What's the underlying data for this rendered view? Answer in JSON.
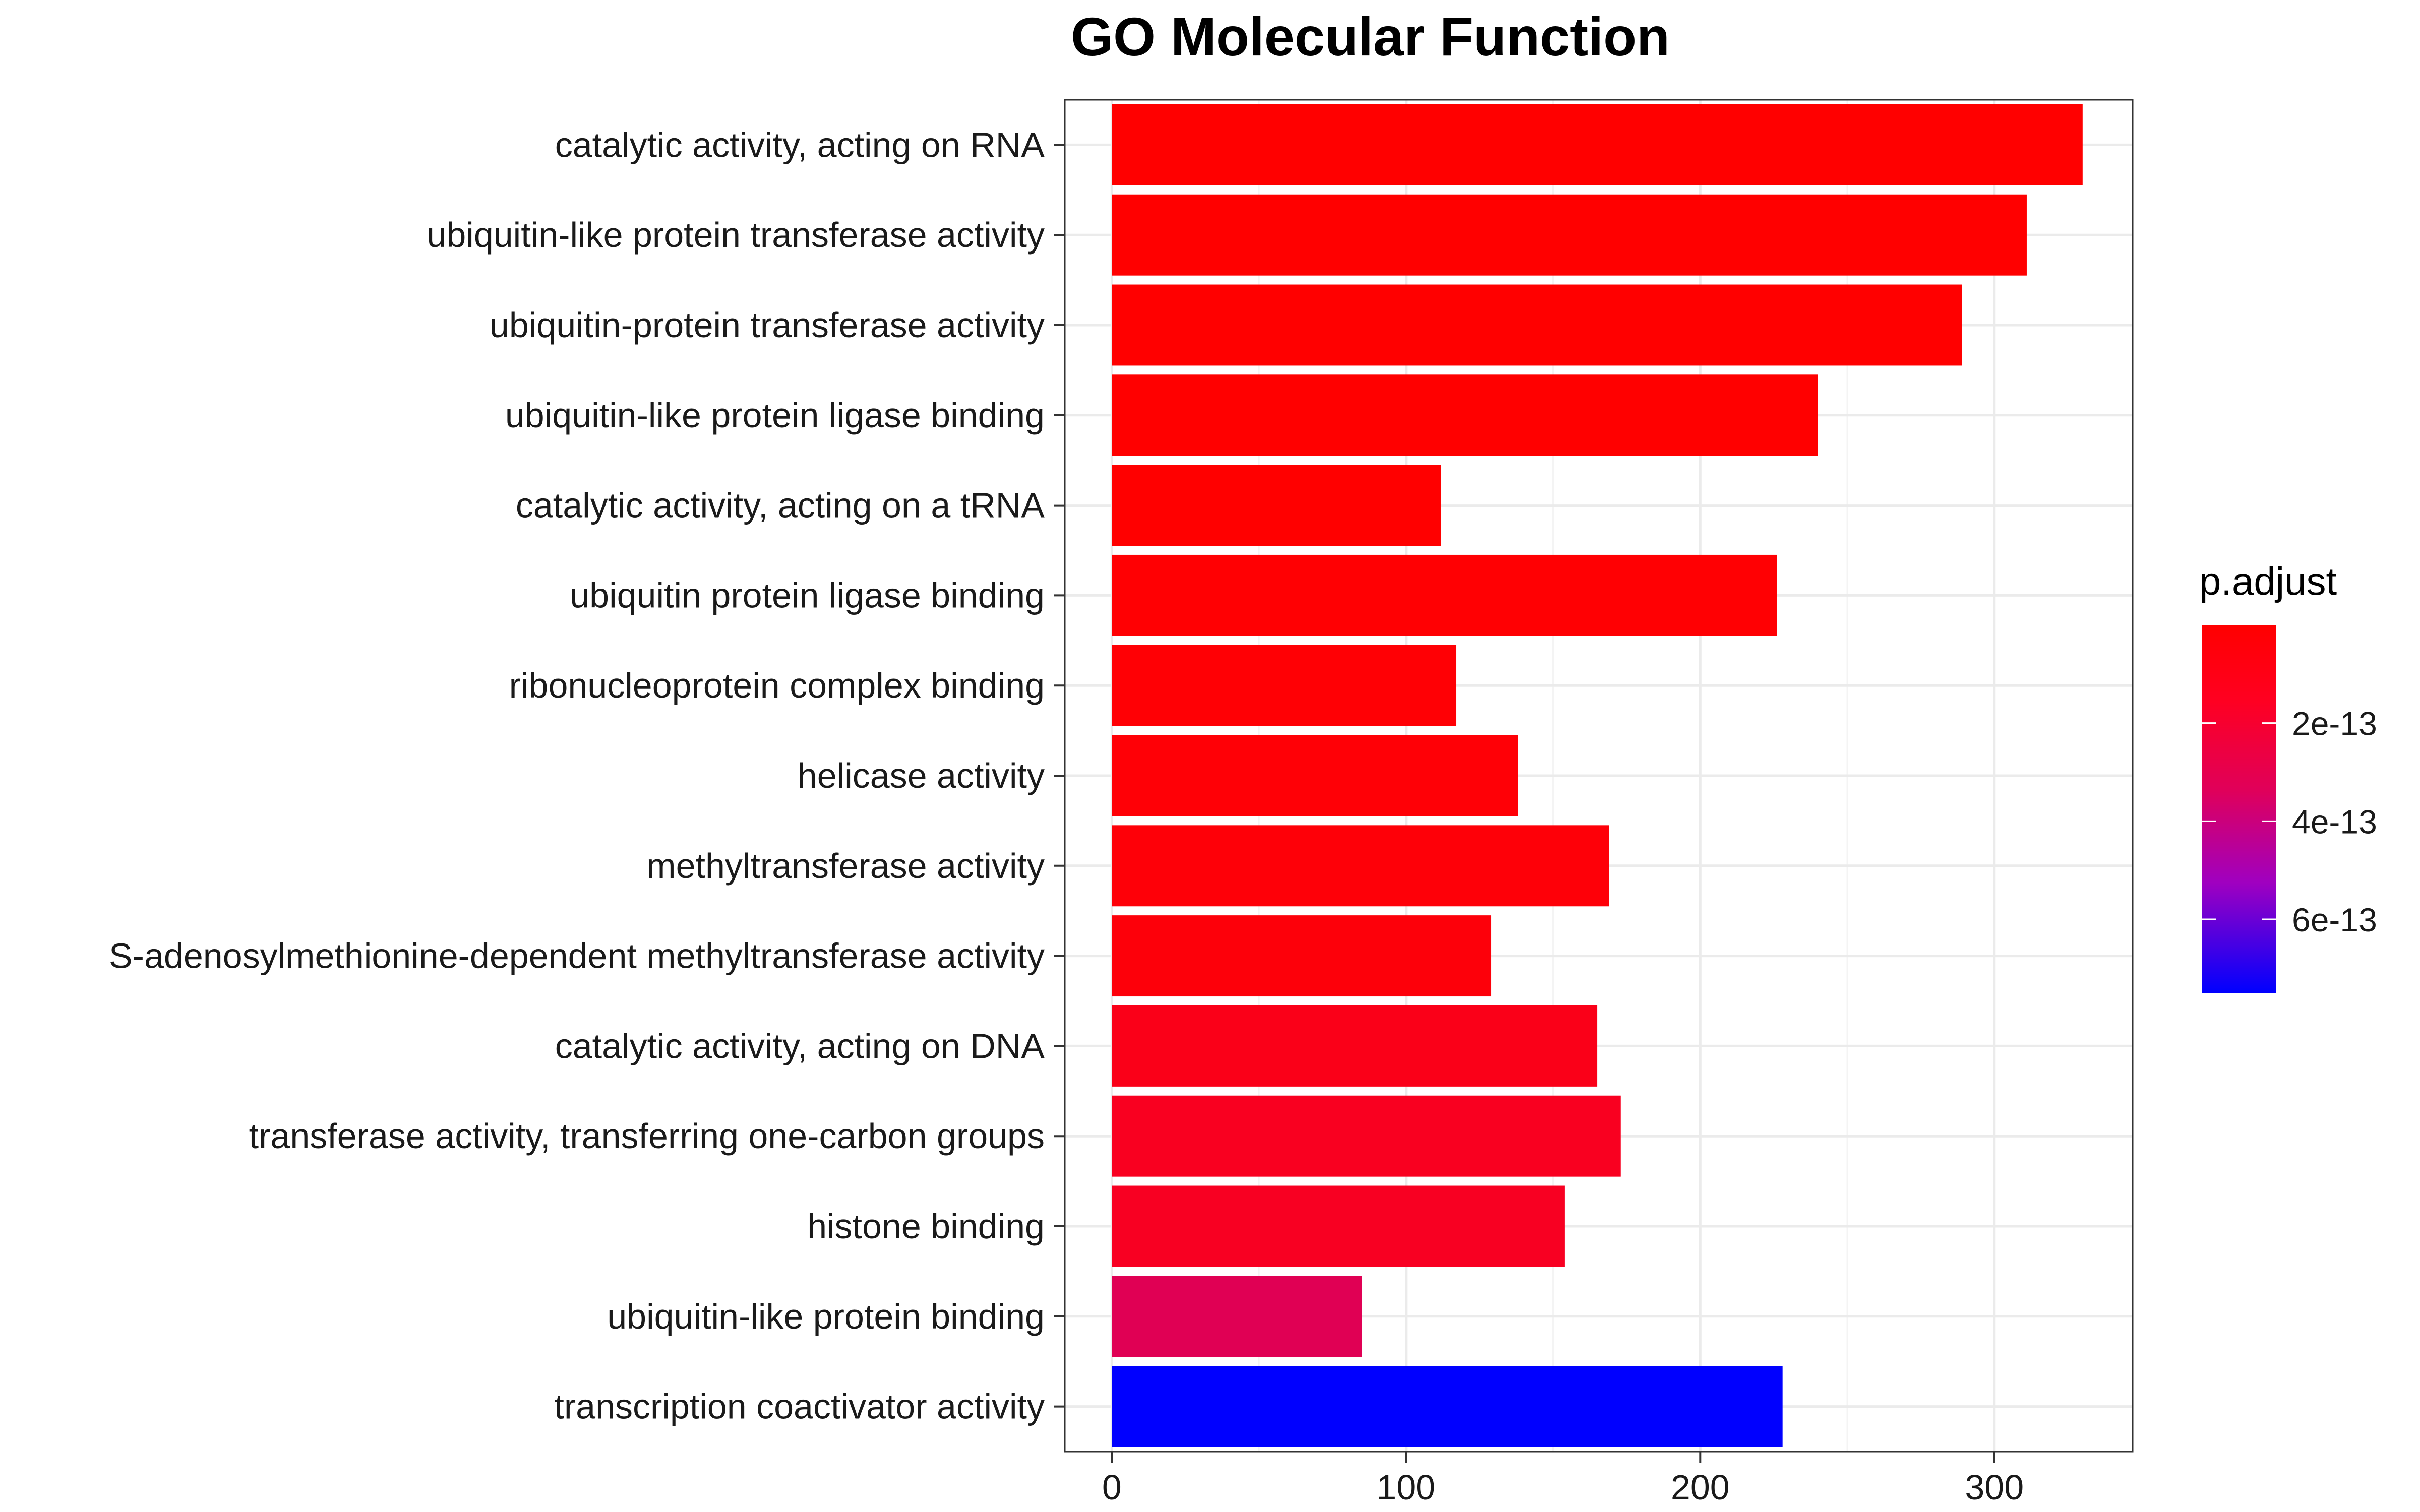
{
  "chart_data": {
    "type": "bar",
    "orientation": "horizontal",
    "title": "GO Molecular Function",
    "xlabel": "",
    "ylabel": "",
    "xlim": [
      -16,
      347
    ],
    "xticks": [
      0,
      100,
      200,
      300
    ],
    "xtick_labels": [
      "0",
      "100",
      "200",
      "300"
    ],
    "grid": true,
    "categories": [
      "catalytic activity, acting on RNA",
      "ubiquitin-like protein transferase activity",
      "ubiquitin-protein transferase activity",
      "ubiquitin-like protein ligase binding",
      "catalytic activity, acting on a tRNA",
      "ubiquitin protein ligase binding",
      "ribonucleoprotein complex binding",
      "helicase activity",
      "methyltransferase activity",
      "S-adenosylmethionine-dependent methyltransferase activity",
      "catalytic activity, acting on DNA",
      "transferase activity, transferring one-carbon groups",
      "histone binding",
      "ubiquitin-like protein binding",
      "transcription coactivator activity"
    ],
    "values": [
      330,
      311,
      289,
      240,
      112,
      226,
      117,
      138,
      169,
      129,
      165,
      173,
      154,
      85,
      228
    ],
    "colors": [
      "#FF0000",
      "#FF0000",
      "#FF0000",
      "#FF0000",
      "#FF0000",
      "#FF0003",
      "#FF0005",
      "#FF0006",
      "#FE0008",
      "#FD000A",
      "#FA0018",
      "#F90020",
      "#F80022",
      "#E00054",
      "#0000FF"
    ],
    "legend": {
      "title": "p.adjust",
      "placement": "right",
      "low_color": "#FF0000",
      "high_color": "#0000FF",
      "range": [
        0,
        7.5e-13
      ],
      "ticks": [
        2e-13,
        4e-13,
        6e-13
      ],
      "tick_labels": [
        "2e-13",
        "4e-13",
        "6e-13"
      ]
    }
  }
}
